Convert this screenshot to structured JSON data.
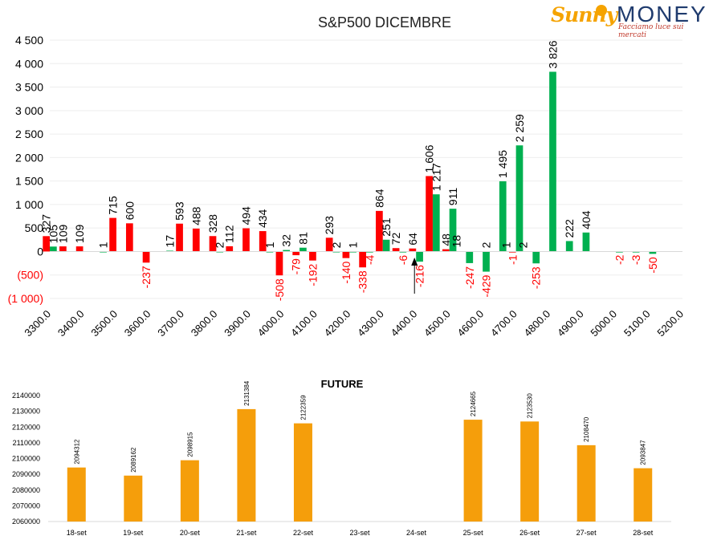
{
  "logo": {
    "brand_left": "Sunny",
    "brand_right": "MONEY",
    "tagline": "Facciamo luce sui mercati"
  },
  "colors": {
    "put": "#ff0000",
    "call": "#00b050",
    "future": "#f59e0b",
    "negative_label": "#ff0000",
    "text": "#000000"
  },
  "chart_data": [
    {
      "type": "bar",
      "title": "S&P500 DICEMBRE",
      "x_ticks": [
        "3300.0",
        "3400.0",
        "3500.0",
        "3600.0",
        "3700.0",
        "3800.0",
        "3900.0",
        "4000.0",
        "4100.0",
        "4200.0",
        "4300.0",
        "4400.0",
        "4500.0",
        "4600.0",
        "4700.0",
        "4800.0",
        "4900.0",
        "5000.0",
        "5100.0",
        "5200.0"
      ],
      "x_min": 3300,
      "x_max": 5200,
      "x_step": 50,
      "ylim": [
        -1000,
        4500
      ],
      "y_ticks": [
        {
          "value": 4500,
          "label": "4 500"
        },
        {
          "value": 4000,
          "label": "4 000"
        },
        {
          "value": 3500,
          "label": "3 500"
        },
        {
          "value": 3000,
          "label": "3 000"
        },
        {
          "value": 2500,
          "label": "2 500"
        },
        {
          "value": 2000,
          "label": "2 000"
        },
        {
          "value": 1500,
          "label": "1 500"
        },
        {
          "value": 1000,
          "label": "1 000"
        },
        {
          "value": 500,
          "label": "500"
        },
        {
          "value": 0,
          "label": "0"
        },
        {
          "value": -500,
          "label": "(500)"
        },
        {
          "value": -1000,
          "label": "(1 000)"
        }
      ],
      "series": [
        {
          "color": "#ff0000",
          "points": [
            {
              "x": 3300,
              "value": 327,
              "label": "327"
            },
            {
              "x": 3350,
              "value": 109,
              "label": "109"
            },
            {
              "x": 3400,
              "value": 109,
              "label": "109"
            },
            {
              "x": 3500,
              "value": 715,
              "label": "715"
            },
            {
              "x": 3550,
              "value": 600,
              "label": "600"
            },
            {
              "x": 3600,
              "value": -237,
              "label": "-237"
            },
            {
              "x": 3700,
              "value": 593,
              "label": "593"
            },
            {
              "x": 3750,
              "value": 488,
              "label": "488"
            },
            {
              "x": 3800,
              "value": 328,
              "label": "328"
            },
            {
              "x": 3850,
              "value": 112,
              "label": "112"
            },
            {
              "x": 3900,
              "value": 494,
              "label": "494"
            },
            {
              "x": 3950,
              "value": 434,
              "label": "434"
            },
            {
              "x": 4000,
              "value": -508,
              "label": "-508"
            },
            {
              "x": 4050,
              "value": -79,
              "label": "-79"
            },
            {
              "x": 4100,
              "value": -192,
              "label": "-192"
            },
            {
              "x": 4150,
              "value": 293,
              "label": "293"
            },
            {
              "x": 4200,
              "value": -140,
              "label": "-140"
            },
            {
              "x": 4250,
              "value": -338,
              "label": "-338"
            },
            {
              "x": 4300,
              "value": 864,
              "label": "864"
            },
            {
              "x": 4350,
              "value": 72,
              "label": "72"
            },
            {
              "x": 4400,
              "value": 64,
              "label": "64"
            },
            {
              "x": 4450,
              "value": 1606,
              "label": "1 606"
            },
            {
              "x": 4500,
              "value": 48,
              "label": "48"
            },
            {
              "x": 4700,
              "value": -1,
              "label": "-1"
            }
          ]
        },
        {
          "color": "#00b050",
          "points": [
            {
              "x": 3300,
              "value": 105,
              "label": "105"
            },
            {
              "x": 3450,
              "value": 1,
              "label": "1"
            },
            {
              "x": 3650,
              "value": 17,
              "label": "17"
            },
            {
              "x": 3800,
              "value": 2,
              "label": "2"
            },
            {
              "x": 3950,
              "value": 1,
              "label": "1"
            },
            {
              "x": 4000,
              "value": 32,
              "label": "32"
            },
            {
              "x": 4050,
              "value": 81,
              "label": "81"
            },
            {
              "x": 4150,
              "value": 2,
              "label": "2"
            },
            {
              "x": 4200,
              "value": 1,
              "label": "1"
            },
            {
              "x": 4250,
              "value": -4,
              "label": "-4"
            },
            {
              "x": 4300,
              "value": 251,
              "label": "251"
            },
            {
              "x": 4350,
              "value": -6,
              "label": "-6"
            },
            {
              "x": 4400,
              "value": -216,
              "label": "-216"
            },
            {
              "x": 4450,
              "value": 1217,
              "label": "1 217"
            },
            {
              "x": 4500,
              "value": 911,
              "label": "911"
            },
            {
              "x": 4550,
              "value": -247,
              "label": "-247"
            },
            {
              "x": 4600,
              "value": 2,
              "label": "2"
            },
            {
              "x": 4600,
              "value": -429,
              "label": "-429"
            },
            {
              "x": 4650,
              "value": 1495,
              "label": "1 495"
            },
            {
              "x": 4700,
              "value": 2259,
              "label": "2 259"
            },
            {
              "x": 4750,
              "value": -253,
              "label": "-253"
            },
            {
              "x": 4800,
              "value": 3826,
              "label": "3 826"
            },
            {
              "x": 4850,
              "value": 222,
              "label": "222"
            },
            {
              "x": 4900,
              "value": 404,
              "label": "404"
            },
            {
              "x": 5000,
              "value": -2,
              "label": "-2"
            },
            {
              "x": 5050,
              "value": -3,
              "label": "-3"
            },
            {
              "x": 5100,
              "value": -50,
              "label": "-50"
            }
          ]
        }
      ],
      "extra_labels": [
        {
          "x": 4500,
          "value": 18,
          "label": "18"
        },
        {
          "x": 4650,
          "value": 1,
          "label": "1"
        },
        {
          "x": 4700,
          "value": 2,
          "label": "2"
        }
      ],
      "marker_arrow_x": 4400
    },
    {
      "type": "bar",
      "title": "FUTURE",
      "categories": [
        "18-set",
        "19-set",
        "20-set",
        "21-set",
        "22-set",
        "23-set",
        "24-set",
        "25-set",
        "26-set",
        "27-set",
        "28-set"
      ],
      "values": [
        2094312,
        2089162,
        2098915,
        2131384,
        2122359,
        null,
        null,
        2124665,
        2123530,
        2108470,
        2093847
      ],
      "value_labels": [
        "2094312",
        "2089162",
        "2098915",
        "2131384",
        "2122359",
        "",
        "",
        "2124665",
        "2123530",
        "2108470",
        "2093847"
      ],
      "ylim": [
        2060000,
        2140000
      ],
      "y_ticks": [
        "2140000",
        "2130000",
        "2120000",
        "2110000",
        "2100000",
        "2090000",
        "2080000",
        "2070000",
        "2060000"
      ],
      "color": "#f59e0b"
    }
  ]
}
